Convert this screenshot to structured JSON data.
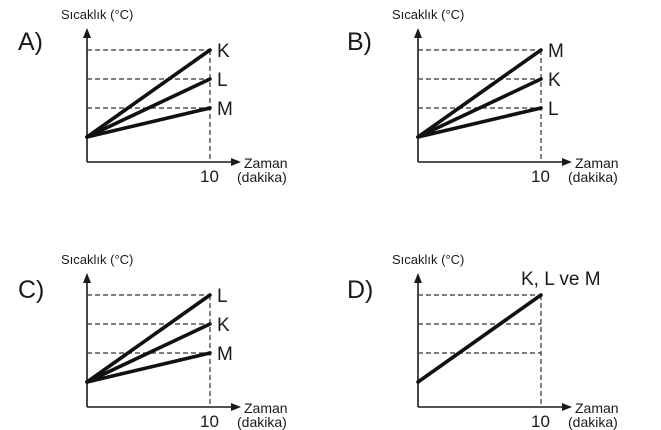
{
  "chart_data": [
    {
      "type": "line",
      "option": "A)",
      "ylabel": "Sıcaklık (°C)",
      "xlabel": "Zaman",
      "xlabel_unit": "(dakika)",
      "x_tick": "10",
      "grid": "dashed guides at line endpoints",
      "series": [
        {
          "name": "K",
          "x": [
            0,
            10
          ],
          "y": [
            0,
            3
          ]
        },
        {
          "name": "L",
          "x": [
            0,
            10
          ],
          "y": [
            0,
            2
          ]
        },
        {
          "name": "M",
          "x": [
            0,
            10
          ],
          "y": [
            0,
            1
          ]
        }
      ]
    },
    {
      "type": "line",
      "option": "B)",
      "ylabel": "Sıcaklık (°C)",
      "xlabel": "Zaman",
      "xlabel_unit": "(dakika)",
      "x_tick": "10",
      "grid": "dashed guides at line endpoints",
      "series": [
        {
          "name": "M",
          "x": [
            0,
            10
          ],
          "y": [
            0,
            3
          ]
        },
        {
          "name": "K",
          "x": [
            0,
            10
          ],
          "y": [
            0,
            2
          ]
        },
        {
          "name": "L",
          "x": [
            0,
            10
          ],
          "y": [
            0,
            1
          ]
        }
      ]
    },
    {
      "type": "line",
      "option": "C)",
      "ylabel": "Sıcaklık (°C)",
      "xlabel": "Zaman",
      "xlabel_unit": "(dakika)",
      "x_tick": "10",
      "grid": "dashed guides at line endpoints",
      "series": [
        {
          "name": "L",
          "x": [
            0,
            10
          ],
          "y": [
            0,
            3
          ]
        },
        {
          "name": "K",
          "x": [
            0,
            10
          ],
          "y": [
            0,
            2
          ]
        },
        {
          "name": "M",
          "x": [
            0,
            10
          ],
          "y": [
            0,
            1
          ]
        }
      ]
    },
    {
      "type": "line",
      "option": "D)",
      "ylabel": "Sıcaklık (°C)",
      "xlabel": "Zaman",
      "xlabel_unit": "(dakika)",
      "x_tick": "10",
      "grid": "dashed guides at line endpoints",
      "series": [
        {
          "name": "K, L ve M",
          "x": [
            0,
            10
          ],
          "y": [
            0,
            3
          ]
        }
      ]
    }
  ]
}
